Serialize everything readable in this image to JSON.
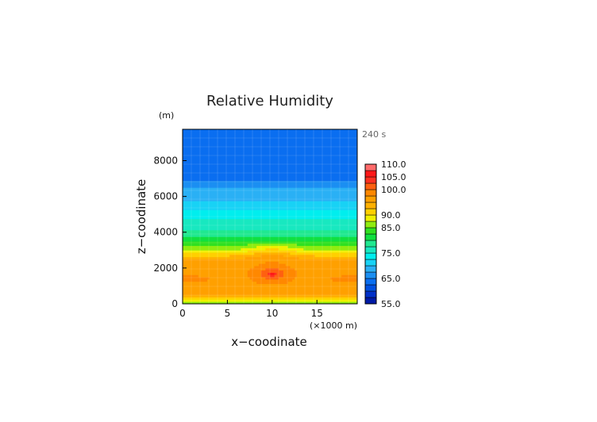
{
  "chart_data": {
    "type": "heatmap",
    "title": "Relative Humidity",
    "time_label": "240 s",
    "xlabel": "x−coodinate",
    "ylabel": "z−coodinate",
    "y_unit": "(m)",
    "x_unit": "(×1000 m)",
    "xlim": [
      0,
      19.5
    ],
    "ylim": [
      0,
      9750
    ],
    "x_ticks": [
      0,
      5,
      10,
      15
    ],
    "y_ticks": [
      0,
      2000,
      4000,
      6000,
      8000
    ],
    "x_tick_labels": [
      "0",
      "5",
      "10",
      "15"
    ],
    "y_tick_labels": [
      "0",
      "2000",
      "4000",
      "6000",
      "8000"
    ],
    "grid": true,
    "legend": "right colorbar",
    "colorbar": {
      "min": 55,
      "max": 110,
      "step": 2.5,
      "tick_labels": [
        "110.0",
        "105.0",
        "100.0",
        "90.0",
        "85.0",
        "75.0",
        "65.0",
        "55.0"
      ],
      "tick_values": [
        110,
        105,
        100,
        90,
        85,
        75,
        65,
        55
      ],
      "colors": [
        "#001aa6",
        "#0030c8",
        "#0050e0",
        "#0a6ef0",
        "#1b8ff2",
        "#2ab0f5",
        "#18d2f5",
        "#00eeee",
        "#18e8c0",
        "#20e890",
        "#10e040",
        "#30e020",
        "#90ec10",
        "#f0f000",
        "#ffd000",
        "#ffb000",
        "#ffa000",
        "#ff8800",
        "#ff6010",
        "#ff3020",
        "#ff1818",
        "#ff6a6a"
      ]
    },
    "profile_z": [
      0,
      250,
      500,
      900,
      1300,
      1700,
      2100,
      2500,
      2700,
      3000,
      3300,
      3600,
      4000,
      4500,
      5000,
      5500,
      6000,
      6600,
      7000,
      8000,
      9000,
      9750
    ],
    "profile_values": [
      86.5,
      89.5,
      95,
      96,
      96.5,
      96.5,
      96,
      95,
      92,
      87,
      84,
      81,
      78,
      76,
      74,
      71,
      69,
      67,
      64,
      63.5,
      63,
      62.5
    ],
    "anomalies": [
      {
        "x": 10,
        "z": 1700,
        "dx": 2.4,
        "dz": 600,
        "value": 5
      },
      {
        "x": 10,
        "z": 1650,
        "dx": 0.4,
        "dz": 100,
        "value": 7
      },
      {
        "x": 0,
        "z": 1400,
        "dx": 3.6,
        "dz": 220,
        "value": 2.5
      },
      {
        "x": 19.5,
        "z": 1400,
        "dx": 3.6,
        "dz": 220,
        "value": 2.5
      },
      {
        "x": 10,
        "z": 2950,
        "dx": 3.4,
        "dz": 550,
        "value": 4
      }
    ]
  }
}
